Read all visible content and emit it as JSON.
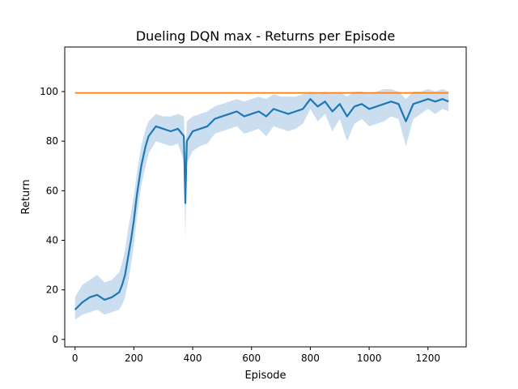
{
  "chart_data": {
    "type": "line",
    "title": "Dueling DQN max - Returns per Episode",
    "xlabel": "Episode",
    "ylabel": "Return",
    "xlim": [
      -35,
      1330
    ],
    "ylim": [
      -3,
      118
    ],
    "xticks": [
      0,
      200,
      400,
      600,
      800,
      1000,
      1200
    ],
    "yticks": [
      0,
      20,
      40,
      60,
      80,
      100
    ],
    "grid": false,
    "legend": "none",
    "series": [
      {
        "color": "#1f77b4",
        "band_color": "#a6c8e6",
        "x": [
          0,
          25,
          50,
          75,
          100,
          125,
          150,
          160,
          170,
          180,
          190,
          200,
          210,
          225,
          240,
          250,
          275,
          300,
          325,
          350,
          370,
          375,
          380,
          400,
          425,
          450,
          475,
          500,
          525,
          550,
          575,
          600,
          625,
          650,
          675,
          700,
          725,
          750,
          775,
          800,
          825,
          850,
          875,
          900,
          925,
          950,
          975,
          1000,
          1025,
          1050,
          1075,
          1100,
          1125,
          1150,
          1175,
          1200,
          1225,
          1250,
          1270
        ],
        "values": [
          12,
          15,
          17,
          18,
          16,
          17,
          19,
          22,
          26,
          33,
          40,
          48,
          58,
          70,
          78,
          82,
          86,
          85,
          84,
          85,
          82,
          55,
          80,
          84,
          85,
          86,
          89,
          90,
          91,
          92,
          90,
          91,
          92,
          90,
          93,
          92,
          91,
          92,
          93,
          97,
          94,
          96,
          92,
          95,
          90,
          94,
          95,
          93,
          94,
          95,
          96,
          95,
          88,
          95,
          96,
          97,
          96,
          97,
          96
        ],
        "upper": [
          17,
          22,
          24,
          26,
          23,
          24,
          27,
          31,
          36,
          44,
          51,
          58,
          67,
          78,
          85,
          88,
          91,
          90,
          90,
          91,
          90,
          72,
          88,
          90,
          91,
          92,
          94,
          95,
          96,
          97,
          96,
          97,
          98,
          97,
          99,
          98,
          98,
          98,
          99,
          100,
          99,
          100,
          99,
          100,
          98,
          100,
          100,
          99,
          100,
          101,
          101,
          100,
          97,
          100,
          100,
          101,
          100,
          101,
          100
        ],
        "lower": [
          8,
          10,
          11,
          12,
          10,
          11,
          12,
          14,
          17,
          23,
          30,
          38,
          49,
          62,
          70,
          75,
          80,
          79,
          78,
          79,
          72,
          40,
          71,
          76,
          78,
          79,
          83,
          84,
          85,
          86,
          83,
          84,
          85,
          82,
          86,
          85,
          84,
          85,
          87,
          93,
          88,
          91,
          84,
          89,
          80,
          87,
          89,
          86,
          87,
          88,
          90,
          89,
          78,
          89,
          91,
          93,
          91,
          93,
          92
        ]
      },
      {
        "color": "#ff7f0e",
        "x": [
          0,
          1270
        ],
        "values": [
          99.5,
          99.5
        ]
      }
    ]
  }
}
